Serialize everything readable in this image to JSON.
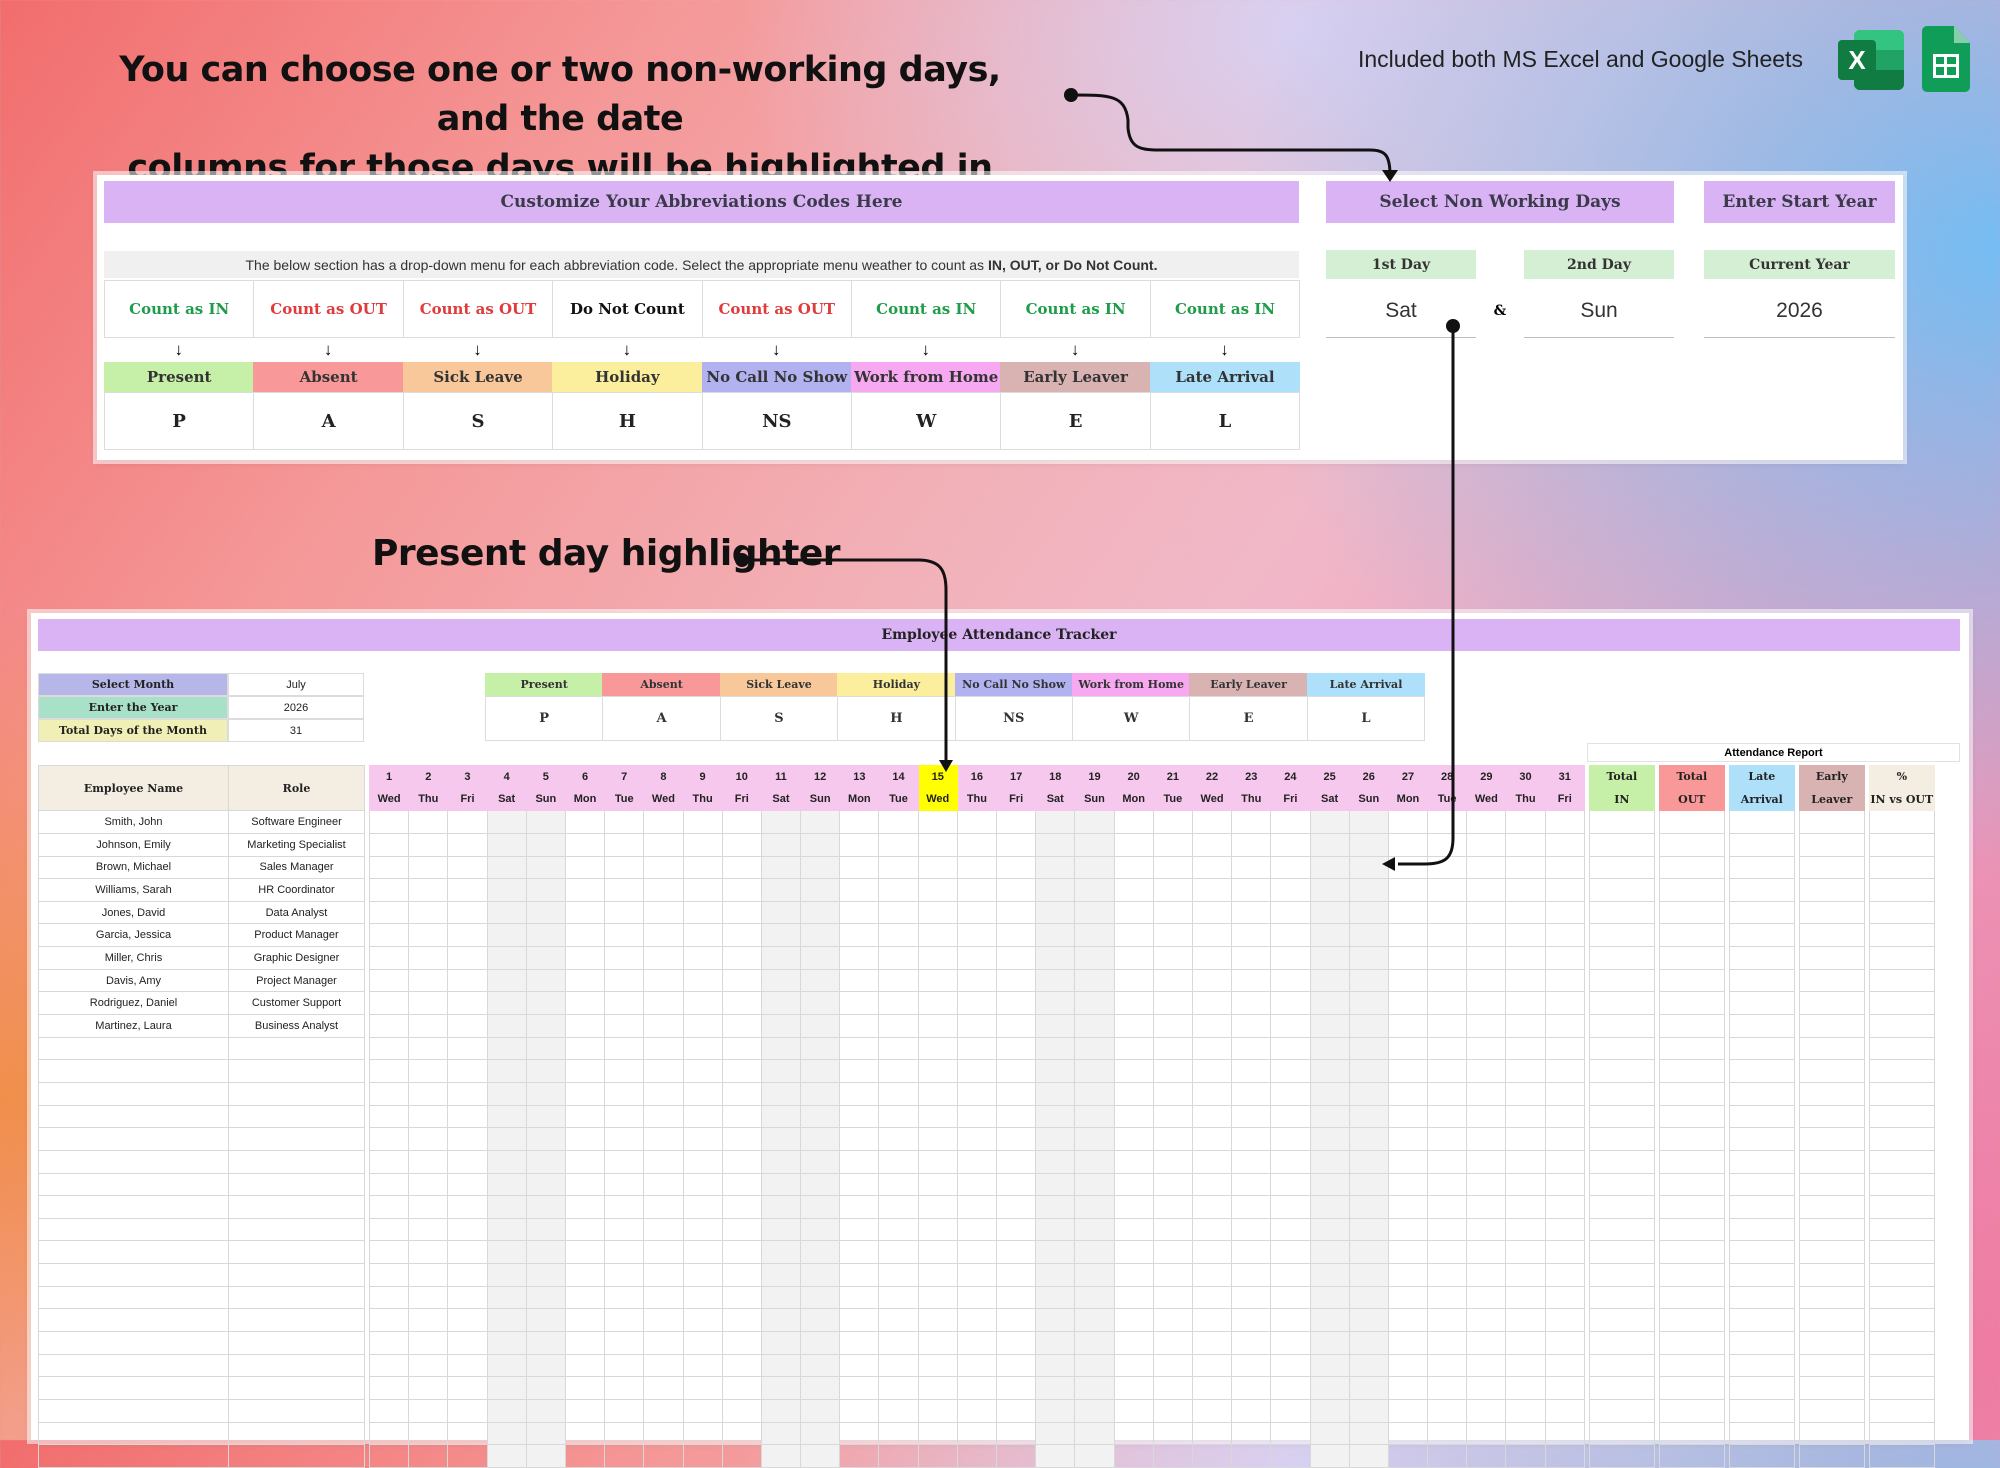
{
  "headline": {
    "line1": "You can choose one or two non-working days, and the date",
    "line2": "columns for those days will be highlighted in grey."
  },
  "included_text": "Included both MS Excel and Google Sheets",
  "icons": {
    "excel": "excel-icon",
    "excel_letter": "X",
    "sheets": "google-sheets-icon"
  },
  "present_day_label": "Present day highlighter",
  "abbrev_panel": {
    "title": "Customize Your Abbreviations Codes Here",
    "note": "The below section has a drop-down menu for each abbreviation code. Select the appropriate menu weather to count as ",
    "note_bold": "IN, OUT, or Do Not Count.",
    "arrow": "↓",
    "columns": [
      {
        "count": "Count as IN",
        "count_color": "#1e9c4a",
        "name": "Present",
        "name_bg": "#c6f0a8",
        "code": "P"
      },
      {
        "count": "Count as OUT",
        "count_color": "#e03b3b",
        "name": "Absent",
        "name_bg": "#f89898",
        "code": "A"
      },
      {
        "count": "Count as OUT",
        "count_color": "#e03b3b",
        "name": "Sick Leave",
        "name_bg": "#f8c89a",
        "code": "S"
      },
      {
        "count": "Do Not Count",
        "count_color": "#111111",
        "name": "Holiday",
        "name_bg": "#fbef9e",
        "code": "H"
      },
      {
        "count": "Count as OUT",
        "count_color": "#e03b3b",
        "name": "No Call No Show",
        "name_bg": "#b2b2f0",
        "code": "NS"
      },
      {
        "count": "Count as IN",
        "count_color": "#1e9c4a",
        "name": "Work from Home",
        "name_bg": "#f7a8f0",
        "code": "W"
      },
      {
        "count": "Count as IN",
        "count_color": "#1e9c4a",
        "name": "Early Leaver",
        "name_bg": "#d9b2b2",
        "code": "E"
      },
      {
        "count": "Count as IN",
        "count_color": "#1e9c4a",
        "name": "Late Arrival",
        "name_bg": "#aee0fa",
        "code": "L"
      }
    ]
  },
  "non_working": {
    "title": "Select Non Working Days",
    "first_label": "1st Day",
    "second_label": "2nd Day",
    "first_value": "Sat",
    "second_value": "Sun",
    "amp": "&"
  },
  "start_year": {
    "title": "Enter Start Year",
    "label": "Current Year",
    "value": "2026"
  },
  "tracker": {
    "title": "Employee Attendance Tracker",
    "settings": [
      {
        "label": "Select Month",
        "value": "July",
        "bg": "#b6b6e8"
      },
      {
        "label": "Enter the Year",
        "value": "2026",
        "bg": "#a8e0c8"
      },
      {
        "label": "Total Days of the Month",
        "value": "31",
        "bg": "#f0f0b6"
      }
    ],
    "legend": [
      {
        "name": "Present",
        "code": "P",
        "bg": "#c6f0a8"
      },
      {
        "name": "Absent",
        "code": "A",
        "bg": "#f89898"
      },
      {
        "name": "Sick Leave",
        "code": "S",
        "bg": "#f8c89a"
      },
      {
        "name": "Holiday",
        "code": "H",
        "bg": "#fbef9e"
      },
      {
        "name": "No Call No Show",
        "code": "NS",
        "bg": "#b2b2f0"
      },
      {
        "name": "Work from Home",
        "code": "W",
        "bg": "#f7a8f0"
      },
      {
        "name": "Early Leaver",
        "code": "E",
        "bg": "#d9b2b2"
      },
      {
        "name": "Late Arrival",
        "code": "L",
        "bg": "#aee0fa"
      }
    ],
    "col_employee": "Employee Name",
    "col_role": "Role",
    "days": [
      {
        "n": "1",
        "d": "Wed"
      },
      {
        "n": "2",
        "d": "Thu"
      },
      {
        "n": "3",
        "d": "Fri"
      },
      {
        "n": "4",
        "d": "Sat"
      },
      {
        "n": "5",
        "d": "Sun"
      },
      {
        "n": "6",
        "d": "Mon"
      },
      {
        "n": "7",
        "d": "Tue"
      },
      {
        "n": "8",
        "d": "Wed"
      },
      {
        "n": "9",
        "d": "Thu"
      },
      {
        "n": "10",
        "d": "Fri"
      },
      {
        "n": "11",
        "d": "Sat"
      },
      {
        "n": "12",
        "d": "Sun"
      },
      {
        "n": "13",
        "d": "Mon"
      },
      {
        "n": "14",
        "d": "Tue"
      },
      {
        "n": "15",
        "d": "Wed"
      },
      {
        "n": "16",
        "d": "Thu"
      },
      {
        "n": "17",
        "d": "Fri"
      },
      {
        "n": "18",
        "d": "Sat"
      },
      {
        "n": "19",
        "d": "Sun"
      },
      {
        "n": "20",
        "d": "Mon"
      },
      {
        "n": "21",
        "d": "Tue"
      },
      {
        "n": "22",
        "d": "Wed"
      },
      {
        "n": "23",
        "d": "Thu"
      },
      {
        "n": "24",
        "d": "Fri"
      },
      {
        "n": "25",
        "d": "Sat"
      },
      {
        "n": "26",
        "d": "Sun"
      },
      {
        "n": "27",
        "d": "Mon"
      },
      {
        "n": "28",
        "d": "Tue"
      },
      {
        "n": "29",
        "d": "Wed"
      },
      {
        "n": "30",
        "d": "Thu"
      },
      {
        "n": "31",
        "d": "Fri"
      }
    ],
    "today": "15",
    "report": {
      "title": "Attendance Report",
      "cols": [
        {
          "line1": "Total",
          "line2": "IN",
          "bg": "#c6f0a8"
        },
        {
          "line1": "Total",
          "line2": "OUT",
          "bg": "#f89898"
        },
        {
          "line1": "Late",
          "line2": "Arrival",
          "bg": "#aee0fa"
        },
        {
          "line1": "Early",
          "line2": "Leaver",
          "bg": "#d9b2b2"
        },
        {
          "line1": "%",
          "line2": "IN vs OUT",
          "bg": "#f4eee2"
        }
      ]
    },
    "employees": [
      {
        "name": "Smith, John",
        "role": "Software Engineer"
      },
      {
        "name": "Johnson, Emily",
        "role": "Marketing Specialist"
      },
      {
        "name": "Brown, Michael",
        "role": "Sales Manager"
      },
      {
        "name": "Williams, Sarah",
        "role": "HR Coordinator"
      },
      {
        "name": "Jones, David",
        "role": "Data Analyst"
      },
      {
        "name": "Garcia, Jessica",
        "role": "Product Manager"
      },
      {
        "name": "Miller, Chris",
        "role": "Graphic Designer"
      },
      {
        "name": "Davis, Amy",
        "role": "Project Manager"
      },
      {
        "name": "Rodriguez, Daniel",
        "role": "Customer Support"
      },
      {
        "name": "Martinez, Laura",
        "role": "Business Analyst"
      }
    ],
    "colors": {
      "header_bg": "#f4eee2",
      "day_bg": "#f7c8ee",
      "today_bg": "#ffff00",
      "weekend_bg": "#f2f2f2"
    }
  }
}
